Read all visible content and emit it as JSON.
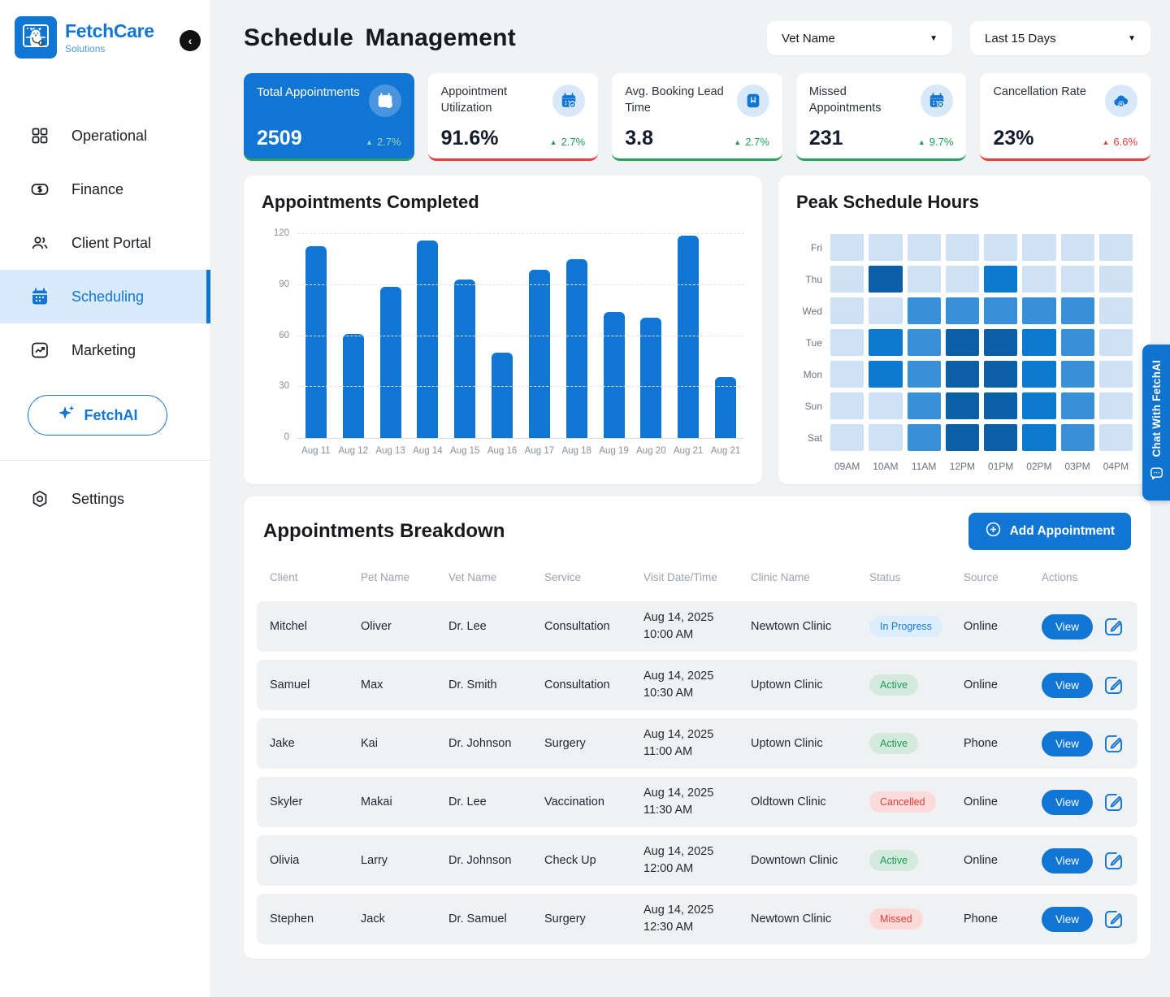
{
  "brand": {
    "name": "FetchCare",
    "sub": "Solutions",
    "logo_icon": "dog-mascot",
    "collapse_icon": "chevron-left"
  },
  "sidebar": {
    "items": [
      {
        "id": "operational",
        "label": "Operational",
        "icon": "grid",
        "active": false
      },
      {
        "id": "finance",
        "label": "Finance",
        "icon": "dollar",
        "active": false
      },
      {
        "id": "client-portal",
        "label": "Client Portal",
        "icon": "users",
        "active": false
      },
      {
        "id": "scheduling",
        "label": "Scheduling",
        "icon": "calendar",
        "active": true
      },
      {
        "id": "marketing",
        "label": "Marketing",
        "icon": "trend",
        "active": false
      }
    ],
    "ai_button_label": "FetchAI",
    "settings_label": "Settings"
  },
  "header": {
    "title": "Schedule Management",
    "filters": [
      {
        "label": "Vet Name"
      },
      {
        "label": "Last 15 Days"
      }
    ]
  },
  "kpis": [
    {
      "label": "Total Appointments",
      "value": "2509",
      "trend": "2.7%",
      "trend_dir": "up",
      "trend_color": "green",
      "accent": "green",
      "highlight": true,
      "icon": "calendar-check"
    },
    {
      "label": "Appointment Utilization",
      "value": "91.6%",
      "trend": "2.7%",
      "trend_dir": "up",
      "trend_color": "green",
      "accent": "red",
      "highlight": false,
      "icon": "calendar-check"
    },
    {
      "label": "Avg. Booking Lead Time",
      "value": "3.8",
      "trend": "2.7%",
      "trend_dir": "up",
      "trend_color": "green",
      "accent": "green",
      "highlight": false,
      "icon": "book"
    },
    {
      "label": "Missed Appointments",
      "value": "231",
      "trend": "9.7%",
      "trend_dir": "up",
      "trend_color": "green",
      "accent": "green",
      "highlight": false,
      "icon": "calendar-x"
    },
    {
      "label": "Cancellation Rate",
      "value": "23%",
      "trend": "6.6%",
      "trend_dir": "up",
      "trend_color": "red",
      "accent": "red",
      "highlight": false,
      "icon": "cloud-x"
    }
  ],
  "chart_data": [
    {
      "type": "bar",
      "title": "Appointments Completed",
      "categories": [
        "Aug 11",
        "Aug 12",
        "Aug 13",
        "Aug 14",
        "Aug 15",
        "Aug 16",
        "Aug 17",
        "Aug 18",
        "Aug 19",
        "Aug 20",
        "Aug 21",
        "Aug 21"
      ],
      "values": [
        113,
        61,
        89,
        116,
        93,
        50,
        99,
        105,
        74,
        71,
        119,
        36
      ],
      "xlabel": "",
      "ylabel": "",
      "ylim": [
        0,
        120
      ],
      "yticks": [
        0,
        30,
        60,
        90,
        120
      ],
      "grid": "dashed horizontal",
      "bar_color": "#1176d3",
      "legend_position": "none"
    },
    {
      "type": "heatmap",
      "title": "Peak Schedule Hours",
      "rows": [
        "Fri",
        "Thu",
        "Wed",
        "Tue",
        "Mon",
        "Sun",
        "Sat"
      ],
      "columns": [
        "09AM",
        "10AM",
        "11AM",
        "12PM",
        "01PM",
        "02PM",
        "03PM",
        "04PM"
      ],
      "values": [
        [
          0,
          0,
          0,
          0,
          0,
          0,
          0,
          0
        ],
        [
          0,
          3,
          0,
          0,
          2,
          0,
          0,
          0
        ],
        [
          0,
          0,
          1,
          1,
          1,
          1,
          1,
          0
        ],
        [
          0,
          2,
          1,
          3,
          3,
          2,
          1,
          0
        ],
        [
          0,
          2,
          1,
          3,
          3,
          2,
          1,
          0
        ],
        [
          0,
          0,
          1,
          3,
          3,
          2,
          1,
          0
        ],
        [
          0,
          0,
          1,
          3,
          3,
          2,
          1,
          0
        ]
      ],
      "intensity_scale": [
        0,
        1,
        2,
        3
      ],
      "palette": {
        "0": "#cfe1f4",
        "1": "#3990d8",
        "2": "#0b79d0",
        "3": "#0a5fa6"
      },
      "legend_position": "none"
    }
  ],
  "table": {
    "title": "Appointments Breakdown",
    "add_button_label": "Add Appointment",
    "columns": [
      "Client",
      "Pet Name",
      "Vet Name",
      "Service",
      "Visit Date/Time",
      "Clinic Name",
      "Status",
      "Source",
      "Actions"
    ],
    "view_label": "View",
    "rows": [
      {
        "client": "Mitchel",
        "pet": "Oliver",
        "vet": "Dr. Lee",
        "service": "Consultation",
        "date": "Aug 14, 2025",
        "time": "10:00 AM",
        "clinic": "Newtown Clinic",
        "status": "In Progress",
        "source": "Online"
      },
      {
        "client": "Samuel",
        "pet": "Max",
        "vet": "Dr. Smith",
        "service": "Consultation",
        "date": "Aug 14, 2025",
        "time": "10:30 AM",
        "clinic": "Uptown Clinic",
        "status": "Active",
        "source": "Online"
      },
      {
        "client": "Jake",
        "pet": "Kai",
        "vet": "Dr. Johnson",
        "service": "Surgery",
        "date": "Aug 14, 2025",
        "time": "11:00 AM",
        "clinic": "Uptown Clinic",
        "status": "Active",
        "source": "Phone"
      },
      {
        "client": "Skyler",
        "pet": "Makai",
        "vet": "Dr. Lee",
        "service": "Vaccination",
        "date": "Aug 14, 2025",
        "time": "11:30 AM",
        "clinic": "Oldtown Clinic",
        "status": "Cancelled",
        "source": "Online"
      },
      {
        "client": "Olivia",
        "pet": "Larry",
        "vet": "Dr. Johnson",
        "service": "Check Up",
        "date": "Aug 14, 2025",
        "time": "12:00 AM",
        "clinic": "Downtown Clinic",
        "status": "Active",
        "source": "Online"
      },
      {
        "client": "Stephen",
        "pet": "Jack",
        "vet": "Dr. Samuel",
        "service": "Surgery",
        "date": "Aug 14, 2025",
        "time": "12:30 AM",
        "clinic": "Newtown Clinic",
        "status": "Missed",
        "source": "Phone"
      }
    ],
    "status_colors": {
      "In Progress": {
        "bg": "#dcedfd",
        "text": "#1779d3"
      },
      "Active": {
        "bg": "#d4e9dd",
        "text": "#1a9a52"
      },
      "Cancelled": {
        "bg": "#fbdcda",
        "text": "#e63c37"
      },
      "Missed": {
        "bg": "#fbd9d7",
        "text": "#e63c37"
      }
    }
  },
  "chat_tab": {
    "label": "Chat With FetchAI",
    "icon": "chat-bubble"
  },
  "colors": {
    "primary": "#1176d3",
    "green": "#1e9e57",
    "red": "#e8413c",
    "background": "#f1f2f4",
    "active_nav_bg": "#d9eafc"
  }
}
